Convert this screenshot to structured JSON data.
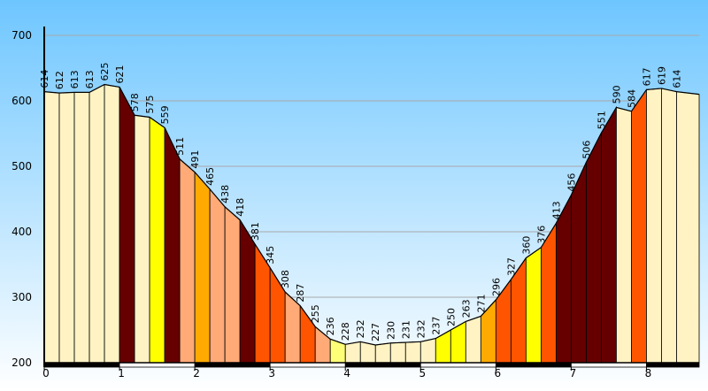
{
  "chart_data": {
    "type": "area",
    "title": "",
    "xlabel": "",
    "ylabel": "",
    "xlim": [
      0,
      8.7
    ],
    "ylim": [
      200,
      700
    ],
    "y_ticks": [
      200,
      300,
      400,
      500,
      600,
      700
    ],
    "x_ticks": [
      0,
      1,
      2,
      3,
      4,
      5,
      6,
      7,
      8
    ],
    "grid": true,
    "legend": "none",
    "background_gradient": [
      "#6ec6ff",
      "#ffffff"
    ],
    "points": [
      {
        "x": 0.0,
        "y": 614
      },
      {
        "x": 0.2,
        "y": 612
      },
      {
        "x": 0.4,
        "y": 613
      },
      {
        "x": 0.6,
        "y": 613
      },
      {
        "x": 0.8,
        "y": 625
      },
      {
        "x": 1.0,
        "y": 621
      },
      {
        "x": 1.2,
        "y": 578
      },
      {
        "x": 1.4,
        "y": 575
      },
      {
        "x": 1.6,
        "y": 559
      },
      {
        "x": 1.8,
        "y": 511
      },
      {
        "x": 2.0,
        "y": 491
      },
      {
        "x": 2.2,
        "y": 465
      },
      {
        "x": 2.4,
        "y": 438
      },
      {
        "x": 2.6,
        "y": 418
      },
      {
        "x": 2.8,
        "y": 381
      },
      {
        "x": 3.0,
        "y": 345
      },
      {
        "x": 3.2,
        "y": 308
      },
      {
        "x": 3.4,
        "y": 287
      },
      {
        "x": 3.6,
        "y": 255
      },
      {
        "x": 3.8,
        "y": 236
      },
      {
        "x": 4.0,
        "y": 228
      },
      {
        "x": 4.2,
        "y": 232
      },
      {
        "x": 4.4,
        "y": 227
      },
      {
        "x": 4.6,
        "y": 230
      },
      {
        "x": 4.8,
        "y": 231
      },
      {
        "x": 5.0,
        "y": 232
      },
      {
        "x": 5.2,
        "y": 237
      },
      {
        "x": 5.4,
        "y": 250
      },
      {
        "x": 5.6,
        "y": 263
      },
      {
        "x": 5.8,
        "y": 271
      },
      {
        "x": 6.0,
        "y": 296
      },
      {
        "x": 6.2,
        "y": 327
      },
      {
        "x": 6.4,
        "y": 360
      },
      {
        "x": 6.6,
        "y": 376
      },
      {
        "x": 6.8,
        "y": 413
      },
      {
        "x": 7.0,
        "y": 456
      },
      {
        "x": 7.2,
        "y": 506
      },
      {
        "x": 7.4,
        "y": 551
      },
      {
        "x": 7.6,
        "y": 590
      },
      {
        "x": 7.8,
        "y": 584
      },
      {
        "x": 8.0,
        "y": 617
      },
      {
        "x": 8.2,
        "y": 619
      },
      {
        "x": 8.4,
        "y": 614
      },
      {
        "x": 8.7,
        "y": 610
      }
    ],
    "point_labels": [
      "614",
      "612",
      "613",
      "613",
      "625",
      "621",
      "578",
      "575",
      "559",
      "511",
      "491",
      "465",
      "438",
      "418",
      "381",
      "345",
      "308",
      "287",
      "255",
      "236",
      "228",
      "232",
      "227",
      "230",
      "231",
      "232",
      "237",
      "250",
      "263",
      "271",
      "296",
      "327",
      "360",
      "376",
      "413",
      "456",
      "506",
      "551",
      "590",
      "584",
      "617",
      "619",
      "614"
    ],
    "segment_colors": [
      "#fff3c4",
      "#fff3c4",
      "#fff3c4",
      "#fff3c4",
      "#fff3c4",
      "#660000",
      "#fff3c4",
      "#ffff00",
      "#660000",
      "#ffaa77",
      "#ffaa00",
      "#ffaa77",
      "#ffaa77",
      "#660000",
      "#ff5500",
      "#ff5500",
      "#ffaa77",
      "#ff5500",
      "#ffaa77",
      "#ffff77",
      "#fff3c4",
      "#fff3c4",
      "#fff3c4",
      "#fff3c4",
      "#fff3c4",
      "#fff3c4",
      "#ffff00",
      "#ffff00",
      "#fff3c4",
      "#ffaa00",
      "#ff5500",
      "#ff5500",
      "#ffff00",
      "#ff5500",
      "#660000",
      "#660000",
      "#660000",
      "#660000",
      "#fff3c4",
      "#ff5500",
      "#fff3c4",
      "#fff3c4",
      "#fff3c4"
    ],
    "km_band_colors": [
      "#000000",
      "#ffffff"
    ]
  }
}
